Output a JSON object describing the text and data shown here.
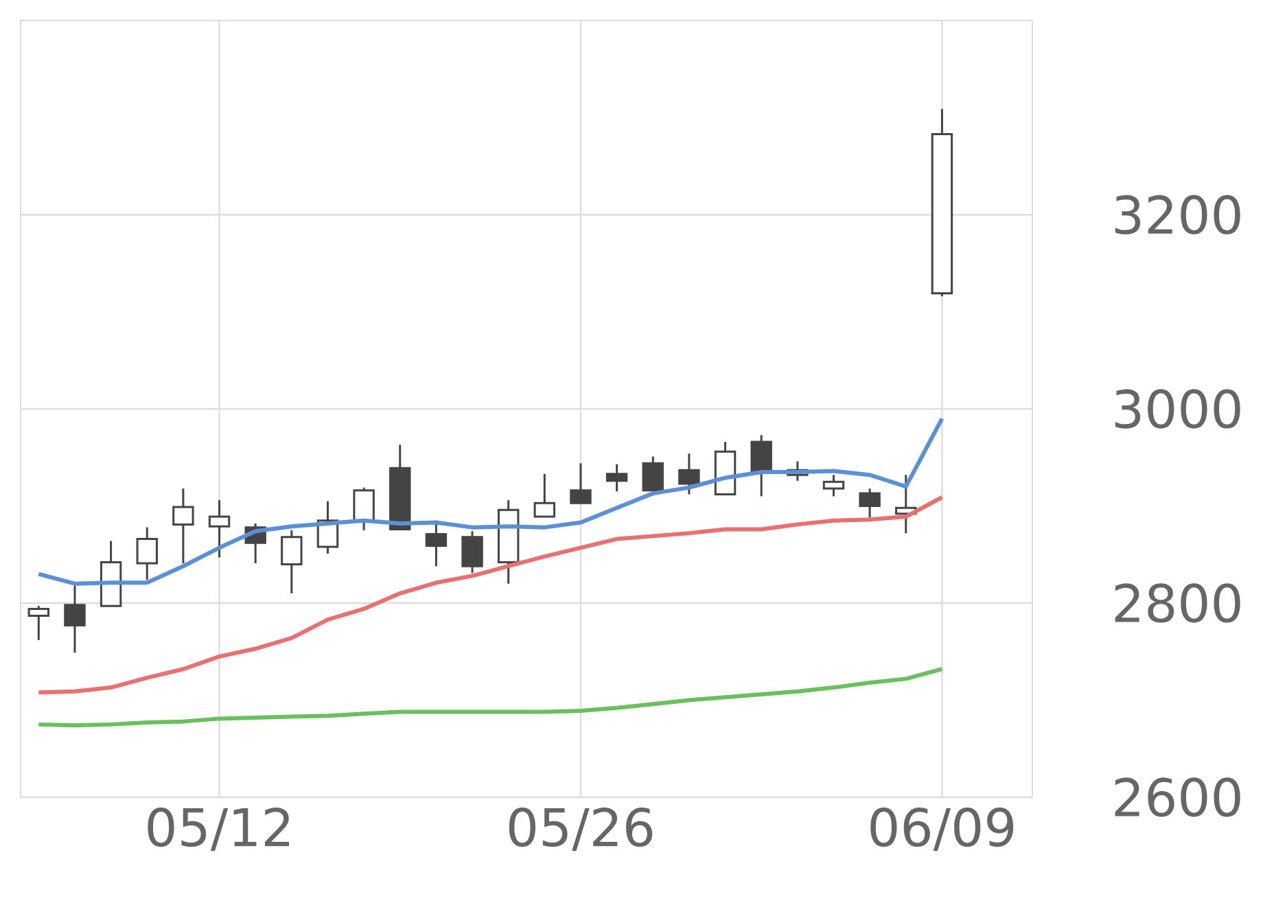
{
  "chart_data": {
    "type": "candlestick",
    "categories": [
      null,
      null,
      null,
      null,
      null,
      "05/12",
      null,
      null,
      null,
      null,
      null,
      null,
      null,
      null,
      null,
      "05/26",
      null,
      null,
      null,
      null,
      null,
      null,
      null,
      null,
      null,
      "06/09"
    ],
    "ylim": [
      2600,
      3400
    ],
    "yticks": [
      2600,
      2800,
      3000,
      3200
    ],
    "grid": true,
    "series": [
      {
        "type": "candlestick",
        "color": "#444444",
        "ohlc": [
          [
            2787,
            2797,
            2762,
            2794
          ],
          [
            2798,
            2818,
            2749,
            2777
          ],
          [
            2797,
            2864,
            2797,
            2842
          ],
          [
            2841,
            2878,
            2824,
            2866
          ],
          [
            2881,
            2918,
            2841,
            2899
          ],
          [
            2879,
            2906,
            2847,
            2889
          ],
          [
            2878,
            2882,
            2841,
            2862
          ],
          [
            2840,
            2875,
            2810,
            2868
          ],
          [
            2858,
            2905,
            2851,
            2885
          ],
          [
            2885,
            2919,
            2875,
            2916
          ],
          [
            2939,
            2963,
            2876,
            2876
          ],
          [
            2871,
            2885,
            2838,
            2859
          ],
          [
            2868,
            2874,
            2831,
            2838
          ],
          [
            2842,
            2906,
            2820,
            2896
          ],
          [
            2889,
            2933,
            2889,
            2903
          ],
          [
            2916,
            2944,
            2903,
            2903
          ],
          [
            2933,
            2943,
            2915,
            2926
          ],
          [
            2944,
            2951,
            2916,
            2916
          ],
          [
            2937,
            2954,
            2912,
            2923
          ],
          [
            2912,
            2966,
            2912,
            2956
          ],
          [
            2966,
            2973,
            2910,
            2935
          ],
          [
            2932,
            2946,
            2926,
            2937
          ],
          [
            2918,
            2932,
            2910,
            2925
          ],
          [
            2913,
            2918,
            2888,
            2900
          ],
          [
            2892,
            2932,
            2872,
            2898
          ],
          [
            3119,
            3309,
            3116,
            3283
          ]
        ]
      },
      {
        "type": "line",
        "color": "#5b8fd6",
        "values": [
          2830,
          2820,
          2821,
          2821,
          2838,
          2857,
          2874,
          2879,
          2882,
          2885,
          2882,
          2883,
          2878,
          2879,
          2878,
          2883,
          2898,
          2913,
          2919,
          2929,
          2935,
          2935,
          2936,
          2932,
          2920,
          2990
        ]
      },
      {
        "type": "line",
        "color": "#e87070",
        "values": [
          2708,
          2709,
          2713,
          2723,
          2732,
          2745,
          2753,
          2764,
          2783,
          2794,
          2810,
          2821,
          2828,
          2838,
          2848,
          2857,
          2866,
          2869,
          2872,
          2876,
          2876,
          2881,
          2885,
          2886,
          2889,
          2909
        ]
      },
      {
        "type": "line",
        "color": "#6abf5e",
        "values": [
          2675,
          2674,
          2675,
          2677,
          2678,
          2681,
          2682,
          2683,
          2684,
          2686,
          2688,
          2688,
          2688,
          2688,
          2688,
          2689,
          2692,
          2696,
          2700,
          2703,
          2706,
          2709,
          2713,
          2718,
          2722,
          2732
        ]
      }
    ]
  }
}
